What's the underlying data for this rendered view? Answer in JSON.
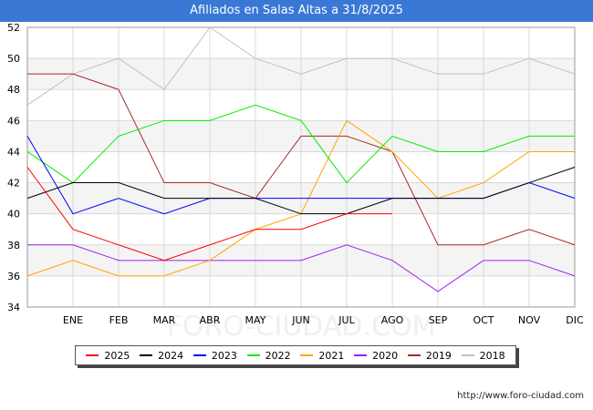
{
  "chart_data": {
    "type": "line",
    "title": "Afiliados en Salas Altas a 31/8/2025",
    "categories": [
      "",
      "ENE",
      "FEB",
      "MAR",
      "ABR",
      "MAY",
      "JUN",
      "JUL",
      "AGO",
      "SEP",
      "OCT",
      "NOV",
      "DIC"
    ],
    "ylim": [
      34,
      52
    ],
    "yticks": [
      34,
      36,
      38,
      40,
      42,
      44,
      46,
      48,
      50,
      52
    ],
    "grid": true,
    "legend_position": "bottom",
    "series": [
      {
        "name": "2025",
        "color": "#ff0000",
        "values": [
          43,
          39,
          38,
          37,
          38,
          39,
          39,
          40,
          40,
          null,
          null,
          null,
          null
        ]
      },
      {
        "name": "2024",
        "color": "#000000",
        "values": [
          41,
          42,
          42,
          41,
          41,
          41,
          40,
          40,
          41,
          41,
          41,
          42,
          43
        ]
      },
      {
        "name": "2023",
        "color": "#0000ff",
        "values": [
          45,
          40,
          41,
          40,
          41,
          41,
          41,
          41,
          41,
          41,
          41,
          42,
          41
        ]
      },
      {
        "name": "2022",
        "color": "#00ee00",
        "values": [
          44,
          42,
          45,
          46,
          46,
          47,
          46,
          42,
          45,
          44,
          44,
          45,
          45
        ]
      },
      {
        "name": "2021",
        "color": "#ffa500",
        "values": [
          36,
          37,
          36,
          36,
          37,
          39,
          40,
          46,
          44,
          41,
          42,
          44,
          44
        ]
      },
      {
        "name": "2020",
        "color": "#a020f0",
        "values": [
          38,
          38,
          37,
          37,
          37,
          37,
          37,
          38,
          37,
          35,
          37,
          37,
          36
        ]
      },
      {
        "name": "2019",
        "color": "#a52a2a",
        "values": [
          49,
          49,
          48,
          42,
          42,
          41,
          45,
          45,
          44,
          38,
          38,
          39,
          38
        ]
      },
      {
        "name": "2018",
        "color": "#c0c0c0",
        "values": [
          47,
          49,
          50,
          48,
          52,
          50,
          49,
          50,
          50,
          49,
          49,
          50,
          49
        ]
      }
    ]
  },
  "watermark": "FORO-CIUDAD.COM",
  "source_url": "http://www.foro-ciudad.com"
}
